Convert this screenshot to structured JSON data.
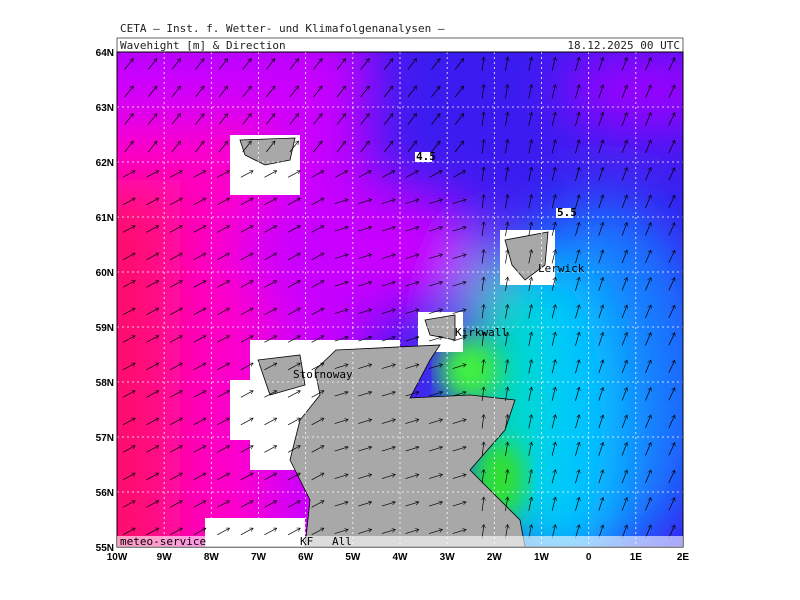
{
  "header": {
    "institute": "CETA – Inst. f. Wetter- und Klimafolgenanalysen –",
    "product": "Wavehight [m] & Direction",
    "date": "18.12.2025 00 UTC"
  },
  "axes": {
    "lat_labels": [
      "64N",
      "63N",
      "62N",
      "61N",
      "60N",
      "59N",
      "58N",
      "57N",
      "56N",
      "55N"
    ],
    "lon_labels": [
      "10W",
      "9W",
      "8W",
      "7W",
      "6W",
      "5W",
      "4W",
      "3W",
      "2W",
      "1W",
      "0",
      "1E",
      "2E"
    ]
  },
  "places": [
    "Lerwick",
    "Kirkwall",
    "Stornoway"
  ],
  "contour_labels": [
    "4.5",
    "5.5"
  ],
  "footer": {
    "source": "meteo-service",
    "left": "KF",
    "right": "All"
  }
}
